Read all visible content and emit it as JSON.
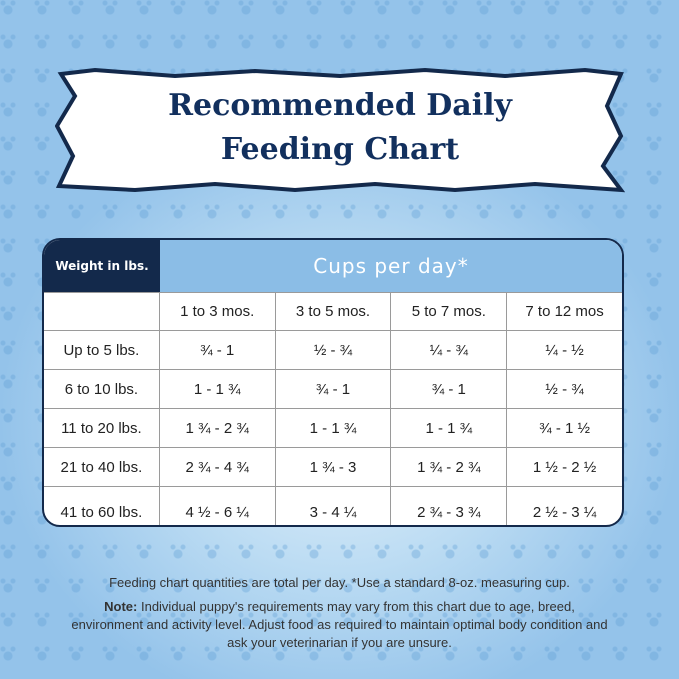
{
  "title_line1": "Recommended Daily",
  "title_line2": "Feeding Chart",
  "table": {
    "weight_header": "Weight in lbs.",
    "cups_header": "Cups per day*",
    "age_columns": [
      "1 to 3 mos.",
      "3 to 5 mos.",
      "5 to 7 mos.",
      "7 to 12 mos"
    ],
    "rows": [
      {
        "weight": "Up to 5 lbs.",
        "values": [
          "¾ - 1",
          "½ - ¾",
          "¼ - ¾",
          "¼ - ½"
        ]
      },
      {
        "weight": "6 to 10 lbs.",
        "values": [
          "1 - 1 ¾",
          "¾ - 1",
          "¾ - 1",
          "½ - ¾"
        ]
      },
      {
        "weight": "11 to 20 lbs.",
        "values": [
          "1 ¾ - 2 ¾",
          "1 - 1 ¾",
          "1 - 1 ¾",
          "¾ - 1 ½"
        ]
      },
      {
        "weight": "21 to 40 lbs.",
        "values": [
          "2 ¾ - 4 ¾",
          "1 ¾ - 3",
          "1 ¾ - 2 ¾",
          "1 ½ - 2 ½"
        ]
      },
      {
        "weight": "41 to 60 lbs.",
        "values": [
          "4 ½ - 6 ¼",
          "3 - 4 ¼",
          "2 ¾ - 3 ¾",
          "2 ½ - 3 ¼"
        ]
      }
    ]
  },
  "footer": {
    "line1": "Feeding chart quantities are total per day. *Use a standard 8-oz. measuring cup.",
    "note_label": "Note:",
    "note_text": " Individual puppy's requirements may vary from this chart due to age, breed, environment and activity level. Adjust food as required to maintain optimal body condition and ask  your veterinarian if you are unsure."
  },
  "colors": {
    "navy": "#13294b",
    "header_blue": "#8bbde6",
    "background": "#9cc8ec"
  }
}
